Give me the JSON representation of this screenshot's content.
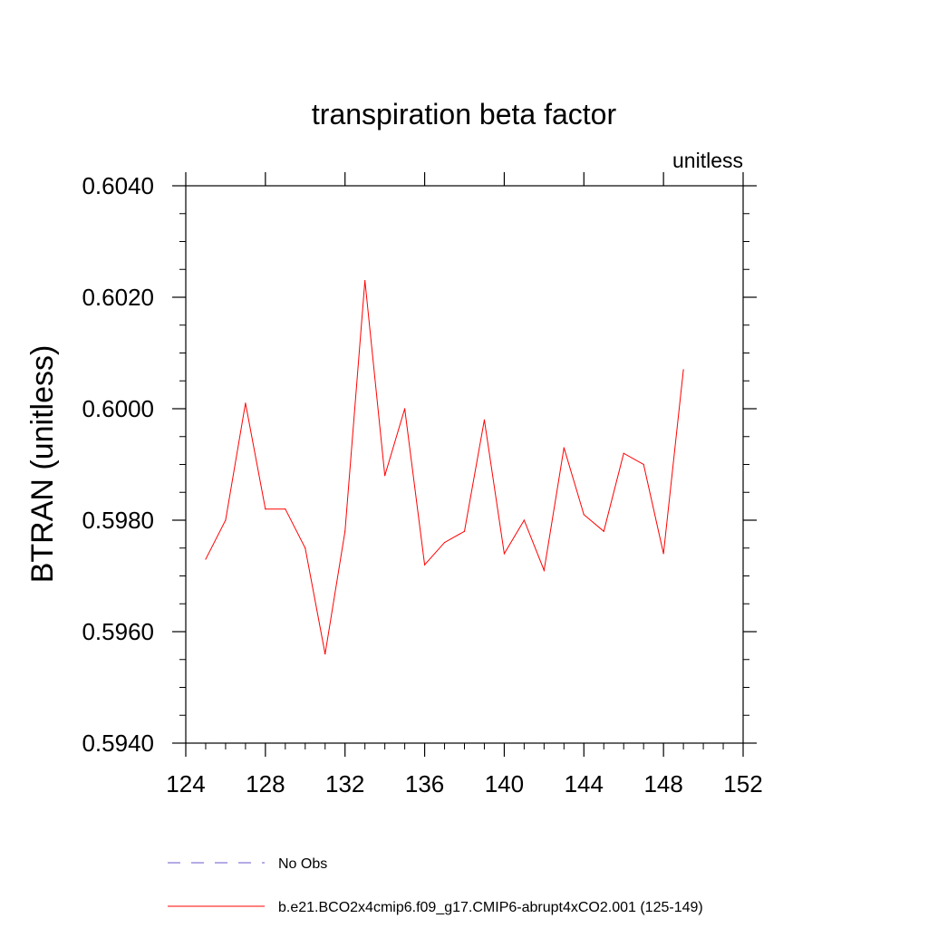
{
  "chart_data": {
    "type": "line",
    "title": "transpiration beta factor",
    "units_label": "unitless",
    "ylabel": "BTRAN  (unitless)",
    "xlabel": "",
    "xlim": [
      124,
      152
    ],
    "ylim": [
      0.594,
      0.604
    ],
    "x_ticks": [
      "124",
      "128",
      "132",
      "136",
      "140",
      "144",
      "148",
      "152"
    ],
    "y_ticks": [
      "0.5940",
      "0.5960",
      "0.5980",
      "0.6000",
      "0.6020",
      "0.6040"
    ],
    "grid": false,
    "legend_position": "bottom",
    "series": [
      {
        "name": "No Obs",
        "color": "#6a5acd",
        "dash": "dashed",
        "x": [],
        "values": []
      },
      {
        "name": "b.e21.BCO2x4cmip6.f09_g17.CMIP6-abrupt4xCO2.001 (125-149)",
        "color": "#ff0000",
        "dash": "solid",
        "x": [
          125,
          126,
          127,
          128,
          129,
          130,
          131,
          132,
          133,
          134,
          135,
          136,
          137,
          138,
          139,
          140,
          141,
          142,
          143,
          144,
          145,
          146,
          147,
          148,
          149
        ],
        "values": [
          0.5973,
          0.598,
          0.6001,
          0.5982,
          0.5982,
          0.5975,
          0.5956,
          0.5978,
          0.6023,
          0.5988,
          0.6,
          0.5972,
          0.5976,
          0.5978,
          0.5998,
          0.5974,
          0.598,
          0.5971,
          0.5993,
          0.5981,
          0.5978,
          0.5992,
          0.599,
          0.5974,
          0.6007
        ]
      }
    ]
  }
}
